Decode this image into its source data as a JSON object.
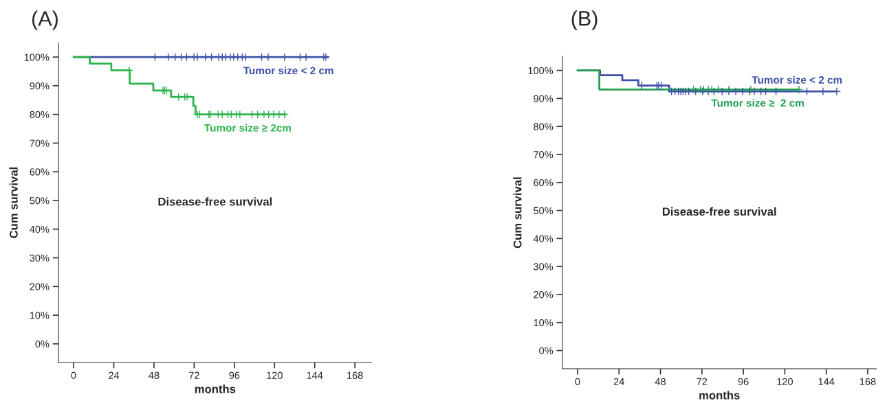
{
  "chart_data": [
    {
      "type": "step",
      "title": "(A)",
      "xlabel": "months",
      "ylabel": "Cum survival",
      "annotations": [
        "Disease-free survival"
      ],
      "xlim": [
        -9,
        178
      ],
      "xticks": [
        0,
        24,
        48,
        72,
        96,
        120,
        144,
        168
      ],
      "ylim": [
        -6.5,
        105
      ],
      "yticks": [
        {
          "value": 0,
          "label": "0%"
        },
        {
          "value": 10,
          "label": "10%"
        },
        {
          "value": 20,
          "label": "20%"
        },
        {
          "value": 30,
          "label": "30%"
        },
        {
          "value": 40,
          "label": "40%"
        },
        {
          "value": 50,
          "label": "50%"
        },
        {
          "value": 60,
          "label": "60%"
        },
        {
          "value": 70,
          "label": "70%"
        },
        {
          "value": 80,
          "label": "80%"
        },
        {
          "value": 90,
          "label": "90%"
        },
        {
          "value": 100,
          "label": "100%"
        }
      ],
      "grid": false,
      "legend": false,
      "series": [
        {
          "type": "step",
          "name": "Tumor size < 2 cm",
          "color": "#3c4fa6",
          "x": [
            0,
            152
          ],
          "values": [
            100,
            100
          ]
        },
        {
          "type": "step",
          "name": "Tumor size ≥ 2cm",
          "color": "#2db34a",
          "x": [
            0,
            9.7,
            22.5,
            33.5,
            47.6,
            58.2,
            71.5,
            72.8,
            126.7
          ],
          "values": [
            100,
            97.7,
            95.4,
            90.7,
            88.3,
            86.1,
            83,
            80,
            80
          ]
        },
        {
          "type": "scatter",
          "marker": "cross",
          "color": "#3c4fa6",
          "x": [
            48.6,
            56.5,
            60.6,
            64.3,
            67.5,
            71.9,
            73.9,
            78.7,
            82.4,
            86.7,
            88.8,
            90.7,
            93.6,
            95.6,
            98,
            100.7,
            102.7,
            112.3,
            116.2,
            126,
            135.3,
            138.8,
            149.4,
            150.7
          ],
          "values": [
            100,
            100,
            100,
            100,
            100,
            100,
            100,
            100,
            100,
            100,
            100,
            100,
            100,
            100,
            100,
            100,
            100,
            100,
            100,
            100,
            100,
            100,
            100,
            100
          ]
        },
        {
          "type": "scatter",
          "marker": "cross",
          "color": "#2db34a",
          "x": [
            33.3,
            53.4,
            54.3,
            55.4,
            62.7,
            66.4,
            67.8,
            73.9,
            75.3,
            80.8,
            81.7,
            86.3,
            88.8,
            92.2,
            94.1,
            97.3,
            99.3,
            106.6,
            109.9,
            113.7,
            116.5,
            119.5,
            122.7,
            126
          ],
          "values": [
            95.4,
            88.3,
            88.3,
            88.3,
            86.1,
            86.1,
            86.1,
            80,
            80,
            80,
            80,
            80,
            80,
            80,
            80,
            80,
            80,
            80,
            80,
            80,
            80,
            80,
            80,
            80
          ]
        }
      ]
    },
    {
      "type": "step",
      "title": "(B)",
      "xlabel": "months",
      "ylabel": "Cum survival",
      "annotations": [
        "Disease-free survival"
      ],
      "xlim": [
        -8.8,
        173
      ],
      "xticks": [
        0,
        24,
        48,
        72,
        96,
        120,
        144,
        168
      ],
      "ylim": [
        -6.5,
        105
      ],
      "yticks": [
        {
          "value": 0,
          "label": "0%"
        },
        {
          "value": 10,
          "label": "10%"
        },
        {
          "value": 20,
          "label": "20%"
        },
        {
          "value": 30,
          "label": "30%"
        },
        {
          "value": 40,
          "label": "40%"
        },
        {
          "value": 50,
          "label": "50%"
        },
        {
          "value": 60,
          "label": "60%"
        },
        {
          "value": 70,
          "label": "70%"
        },
        {
          "value": 80,
          "label": "80%"
        },
        {
          "value": 90,
          "label": "90%"
        },
        {
          "value": 100,
          "label": "100%"
        }
      ],
      "grid": false,
      "legend": false,
      "series": [
        {
          "type": "step",
          "name": "Tumor size < 2 cm",
          "color": "#3c4fa6",
          "x": [
            0,
            13,
            25.9,
            35.2,
            53.1,
            150
          ],
          "values": [
            100,
            98.3,
            96.5,
            94.6,
            92.5,
            92.5
          ]
        },
        {
          "type": "step",
          "name": "Tumor size ≥  2 cm",
          "color": "#1f9e50",
          "x": [
            0,
            12.6,
            128
          ],
          "values": [
            100,
            93.2,
            93.2
          ]
        },
        {
          "type": "scatter",
          "marker": "cross",
          "color": "#3c4fa6",
          "x": [
            37.2,
            45.9,
            46.9,
            48.5,
            54.4,
            56.4,
            58.4,
            59.8,
            61.1,
            62.4,
            64.4,
            68.4,
            72.4,
            75.7,
            79.0,
            83.7,
            87.6,
            91.6,
            95.6,
            99.6,
            102.3,
            106.2,
            108.9,
            114.9,
            132.8,
            142.1,
            150.1
          ],
          "values": [
            94.6,
            94.6,
            94.6,
            94.6,
            92.5,
            92.5,
            92.5,
            92.5,
            92.5,
            92.5,
            92.5,
            92.5,
            92.5,
            92.5,
            92.5,
            92.5,
            92.5,
            92.5,
            92.5,
            92.5,
            92.5,
            92.5,
            92.5,
            92.5,
            92.5,
            92.5,
            92.5
          ]
        },
        {
          "type": "scatter",
          "marker": "cross",
          "color": "#1f9e50",
          "x": [
            67.1,
            71.1,
            73.0,
            75.7,
            77.7,
            81.7,
            87.6,
            100.3,
            128.2
          ],
          "values": [
            93.2,
            93.2,
            93.2,
            93.2,
            93.2,
            93.2,
            93.2,
            93.2,
            93.2
          ]
        }
      ]
    }
  ]
}
